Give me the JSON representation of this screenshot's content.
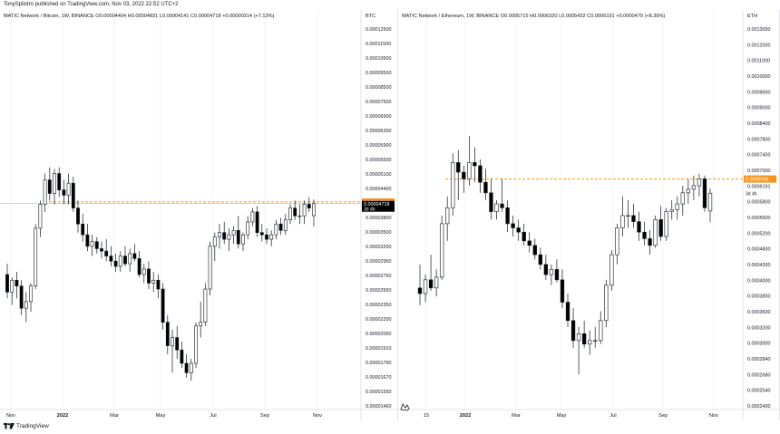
{
  "publisher_line": "TonySpilotro published on TradingView.com, Nov 03, 2022 22:52 UTC+2",
  "footer_brand": "TradingView",
  "colors": {
    "up": "#ffffff",
    "down": "#000000",
    "stroke": "#131722",
    "level": "#f7941d",
    "grid": "#f0f3fa"
  },
  "panels": [
    {
      "legend": "MATIC Network / Bitcoin, 1W, BINANCE  O0.00004404  H0.00004831  L0.00004141  C0.00004718  +0.00000314 (+7.13%)",
      "axis_unit": "BTC",
      "right_ticks": [
        "0.00012500",
        "0.00011500",
        "0.00010500",
        "0.00009500",
        "0.00008500",
        "0.00007500",
        "0.00006900",
        "0.00006300",
        "0.00005900",
        "0.00005500",
        "0.00005100",
        "0.00004400",
        "0.00004100",
        "0.00003800",
        "0.00003500",
        "0.00003200",
        "0.00002950",
        "0.00002750",
        "0.00002550",
        "0.00002350",
        "0.00002200",
        "0.00002050",
        "0.00001910",
        "0.00001790",
        "0.00001670",
        "0.00001550",
        "0.00001460"
      ],
      "level_label": "0.00004762",
      "price_label": "0.00004718",
      "countdown_label": "3d 4h",
      "time_ticks": [
        "Nov",
        "2022",
        "Mar",
        "May",
        "Jul",
        "Sep",
        "Nov"
      ]
    },
    {
      "legend": "MATIC Network / Ethereum, 1W, BINANCE  O0.0005715  H0.0006320  L0.0005432  C0.0006191  +0.0000479 (+8.39%)",
      "axis_unit": "ETH",
      "right_ticks": [
        "0.0013000",
        "0.0012000",
        "0.0011000",
        "0.0010000",
        "0.0009600",
        "0.0009000",
        "0.0008400",
        "0.0007800",
        "0.0007400",
        "0.0007000",
        "0.0006191",
        "0.0005800",
        "0.0005600",
        "0.0005200",
        "0.0004800",
        "0.0004300",
        "0.0004000",
        "0.0003800",
        "0.0003600",
        "0.0003200",
        "0.0003000",
        "0.0002840",
        "0.0002680",
        "0.0002540",
        "0.0002400"
      ],
      "level_label": "0.0006596",
      "price_label": "",
      "countdown_label": "3d 4h",
      "time_ticks": [
        "15",
        "2022",
        "Mar",
        "May",
        "Jul",
        "Sep",
        "Nov"
      ]
    }
  ],
  "chart_data": [
    {
      "type": "candlestick",
      "title": "MATIC Network / Bitcoin, 1W, BINANCE",
      "ylabel": "BTC",
      "scale": "log",
      "ylim": [
        1.46e-05,
        0.000135
      ],
      "x_labels": [
        "Nov",
        "2022",
        "Mar",
        "May",
        "Jul",
        "Sep",
        "Nov"
      ],
      "horizontal_level": 4.762e-05,
      "last_close": 4.718e-05,
      "ohlc": [
        [
          3.15e-05,
          3.35e-05,
          2.75e-05,
          2.85e-05
        ],
        [
          2.85e-05,
          3.1e-05,
          2.65e-05,
          3.05e-05
        ],
        [
          3.05e-05,
          3.2e-05,
          2.75e-05,
          2.95e-05
        ],
        [
          2.95e-05,
          3.05e-05,
          2.5e-05,
          2.6e-05
        ],
        [
          2.6e-05,
          2.85e-05,
          2.4e-05,
          2.7e-05
        ],
        [
          2.7e-05,
          3e-05,
          2.55e-05,
          2.95e-05
        ],
        [
          2.95e-05,
          4.2e-05,
          2.9e-05,
          4.1e-05
        ],
        [
          4.1e-05,
          4.8e-05,
          3.9e-05,
          4.7e-05
        ],
        [
          4.7e-05,
          5.6e-05,
          4.5e-05,
          5.4e-05
        ],
        [
          5.4e-05,
          5.8e-05,
          4.8e-05,
          5e-05
        ],
        [
          5e-05,
          5.75e-05,
          4.7e-05,
          5.6e-05
        ],
        [
          5.6e-05,
          5.8e-05,
          4.9e-05,
          5.1e-05
        ],
        [
          5.1e-05,
          5.4e-05,
          4.7e-05,
          4.95e-05
        ],
        [
          4.95e-05,
          5.6e-05,
          4.7e-05,
          5.3e-05
        ],
        [
          5.3e-05,
          5.5e-05,
          4.5e-05,
          4.6e-05
        ],
        [
          4.6e-05,
          4.8e-05,
          4e-05,
          4.2e-05
        ],
        [
          4.2e-05,
          4.45e-05,
          3.8e-05,
          3.95e-05
        ],
        [
          3.95e-05,
          4.2e-05,
          3.6e-05,
          3.7e-05
        ],
        [
          3.7e-05,
          3.95e-05,
          3.5e-05,
          3.8e-05
        ],
        [
          3.8e-05,
          3.9e-05,
          3.55e-05,
          3.65e-05
        ],
        [
          3.65e-05,
          3.8e-05,
          3.45e-05,
          3.6e-05
        ],
        [
          3.6e-05,
          3.85e-05,
          3.4e-05,
          3.5e-05
        ],
        [
          3.5e-05,
          3.7e-05,
          3.3e-05,
          3.4e-05
        ],
        [
          3.4e-05,
          3.55e-05,
          3.2e-05,
          3.3e-05
        ],
        [
          3.3e-05,
          3.6e-05,
          3.2e-05,
          3.5e-05
        ],
        [
          3.5e-05,
          3.7e-05,
          3.3e-05,
          3.35e-05
        ],
        [
          3.35e-05,
          3.65e-05,
          3.2e-05,
          3.55e-05
        ],
        [
          3.55e-05,
          3.75e-05,
          3.4e-05,
          3.45e-05
        ],
        [
          3.45e-05,
          3.6e-05,
          3.1e-05,
          3.15e-05
        ],
        [
          3.15e-05,
          3.35e-05,
          3e-05,
          3.25e-05
        ],
        [
          3.25e-05,
          3.4e-05,
          2.9e-05,
          3e-05
        ],
        [
          3e-05,
          3.2e-05,
          2.85e-05,
          3.05e-05
        ],
        [
          3.05e-05,
          3.15e-05,
          2.75e-05,
          2.9e-05
        ],
        [
          2.9e-05,
          3e-05,
          2.3e-05,
          2.4e-05
        ],
        [
          2.4e-05,
          2.5e-05,
          2e-05,
          2.1e-05
        ],
        [
          2.1e-05,
          2.3e-05,
          1.8e-05,
          2.2e-05
        ],
        [
          2.2e-05,
          2.35e-05,
          1.95e-05,
          2.05e-05
        ],
        [
          2.05e-05,
          2.15e-05,
          1.85e-05,
          1.9e-05
        ],
        [
          1.9e-05,
          2e-05,
          1.75e-05,
          1.8e-05
        ],
        [
          1.8e-05,
          1.95e-05,
          1.72e-05,
          1.9e-05
        ],
        [
          1.9e-05,
          2.4e-05,
          1.85e-05,
          2.35e-05
        ],
        [
          2.35e-05,
          2.7e-05,
          2.2e-05,
          2.4e-05
        ],
        [
          2.4e-05,
          3e-05,
          2.35e-05,
          2.9e-05
        ],
        [
          2.9e-05,
          3.8e-05,
          2.8e-05,
          3.7e-05
        ],
        [
          3.7e-05,
          4e-05,
          3.4e-05,
          3.9e-05
        ],
        [
          3.9e-05,
          4.2e-05,
          3.65e-05,
          4e-05
        ],
        [
          4e-05,
          4.25e-05,
          3.75e-05,
          3.85e-05
        ],
        [
          3.85e-05,
          4.1e-05,
          3.6e-05,
          3.95e-05
        ],
        [
          3.95e-05,
          4.15e-05,
          3.75e-05,
          4.05e-05
        ],
        [
          4.05e-05,
          4.4e-05,
          3.65e-05,
          3.75e-05
        ],
        [
          3.75e-05,
          4e-05,
          3.6e-05,
          3.95e-05
        ],
        [
          3.95e-05,
          4.4e-05,
          3.85e-05,
          4.25e-05
        ],
        [
          4.25e-05,
          4.6e-05,
          4.15e-05,
          4.5e-05
        ],
        [
          4.5e-05,
          4.65e-05,
          3.9e-05,
          4e-05
        ],
        [
          4e-05,
          4.2e-05,
          3.8e-05,
          3.95e-05
        ],
        [
          3.95e-05,
          4.1e-05,
          3.75e-05,
          3.85e-05
        ],
        [
          3.85e-05,
          4.05e-05,
          3.7e-05,
          3.95e-05
        ],
        [
          3.95e-05,
          4.3e-05,
          3.85e-05,
          4.2e-05
        ],
        [
          4.2e-05,
          4.35e-05,
          3.95e-05,
          4.05e-05
        ],
        [
          4.05e-05,
          4.45e-05,
          3.95e-05,
          4.3e-05
        ],
        [
          4.3e-05,
          4.7e-05,
          4.2e-05,
          4.6e-05
        ],
        [
          4.6e-05,
          4.8e-05,
          4.3e-05,
          4.4e-05
        ],
        [
          4.4e-05,
          4.7e-05,
          4.2e-05,
          4.4e-05
        ],
        [
          4.4e-05,
          4.8e-05,
          4.2e-05,
          4.7e-05
        ],
        [
          4.7e-05,
          4.9e-05,
          4.5e-05,
          4.6e-05
        ],
        [
          4.404e-05,
          4.831e-05,
          4.141e-05,
          4.718e-05
        ]
      ]
    },
    {
      "type": "candlestick",
      "title": "MATIC Network / Ethereum, 1W, BINANCE",
      "ylabel": "ETH",
      "scale": "log",
      "ylim": [
        0.000235,
        0.00135
      ],
      "x_labels": [
        "15",
        "2022",
        "Mar",
        "May",
        "Jul",
        "Sep",
        "Nov"
      ],
      "horizontal_level": 0.0006596,
      "last_close": 0.0006191,
      "ohlc": [
        [
          0.000405,
          0.00045,
          0.000375,
          0.000395
        ],
        [
          0.000395,
          0.00043,
          0.00038,
          0.00042
        ],
        [
          0.00042,
          0.00047,
          0.0004,
          0.000405
        ],
        [
          0.000405,
          0.00044,
          0.00039,
          0.000425
        ],
        [
          0.000425,
          0.00056,
          0.00042,
          0.00054
        ],
        [
          0.00054,
          0.00061,
          0.0005,
          0.00058
        ],
        [
          0.00058,
          0.00074,
          0.00056,
          0.00071
        ],
        [
          0.00071,
          0.00075,
          0.0006,
          0.00068
        ],
        [
          0.00068,
          0.0007,
          0.00062,
          0.00066
        ],
        [
          0.00066,
          0.0008,
          0.00064,
          0.00071
        ],
        [
          0.00071,
          0.00076,
          0.00065,
          0.0007
        ],
        [
          0.0007,
          0.00072,
          0.00062,
          0.00065
        ],
        [
          0.00065,
          0.00069,
          0.0006,
          0.00062
        ],
        [
          0.00062,
          0.00066,
          0.00055,
          0.00057
        ],
        [
          0.00057,
          0.0006,
          0.00055,
          0.00059
        ],
        [
          0.00059,
          0.00066,
          0.00057,
          0.00058
        ],
        [
          0.00058,
          0.0006,
          0.00052,
          0.00054
        ],
        [
          0.00054,
          0.00056,
          0.00051,
          0.00053
        ],
        [
          0.00053,
          0.00055,
          0.0005,
          0.00052
        ],
        [
          0.00052,
          0.00054,
          0.00049,
          0.0005
        ],
        [
          0.0005,
          0.00052,
          0.000475,
          0.00049
        ],
        [
          0.00049,
          0.000505,
          0.00046,
          0.00047
        ],
        [
          0.00047,
          0.000485,
          0.00044,
          0.00045
        ],
        [
          0.00045,
          0.00047,
          0.00042,
          0.00043
        ],
        [
          0.00043,
          0.00045,
          0.00041,
          0.00044
        ],
        [
          0.00044,
          0.00046,
          0.000415,
          0.00042
        ],
        [
          0.00042,
          0.00044,
          0.00037,
          0.00038
        ],
        [
          0.00038,
          0.000395,
          0.00034,
          0.00035
        ],
        [
          0.00035,
          0.00037,
          0.00031,
          0.00032
        ],
        [
          0.00032,
          0.00034,
          0.000275,
          0.00033
        ],
        [
          0.00033,
          0.00035,
          0.00031,
          0.000315
        ],
        [
          0.000315,
          0.000335,
          0.0003,
          0.00032
        ],
        [
          0.00032,
          0.00034,
          0.00031,
          0.00032
        ],
        [
          0.00032,
          0.000365,
          0.000315,
          0.00035
        ],
        [
          0.00035,
          0.00042,
          0.00034,
          0.00041
        ],
        [
          0.00041,
          0.00048,
          0.0004,
          0.00047
        ],
        [
          0.00047,
          0.00054,
          0.00045,
          0.00053
        ],
        [
          0.00053,
          0.00061,
          0.00051,
          0.00056
        ],
        [
          0.00056,
          0.0006,
          0.00053,
          0.00056
        ],
        [
          0.00056,
          0.00059,
          0.00053,
          0.000545
        ],
        [
          0.000545,
          0.00057,
          0.0005,
          0.00052
        ],
        [
          0.00052,
          0.000545,
          0.00049,
          0.000505
        ],
        [
          0.000505,
          0.000525,
          0.00047,
          0.00049
        ],
        [
          0.00049,
          0.00056,
          0.000485,
          0.00055
        ],
        [
          0.00055,
          0.000585,
          0.0005,
          0.00051
        ],
        [
          0.00051,
          0.00058,
          0.0005,
          0.00057
        ],
        [
          0.00057,
          0.0006,
          0.00055,
          0.000575
        ],
        [
          0.000575,
          0.00061,
          0.00055,
          0.00059
        ],
        [
          0.00059,
          0.00064,
          0.00056,
          0.00062
        ],
        [
          0.00062,
          0.00066,
          0.00059,
          0.00063
        ],
        [
          0.00063,
          0.00067,
          0.0006,
          0.00064
        ],
        [
          0.00064,
          0.000675,
          0.00061,
          0.00066
        ],
        [
          0.00066,
          0.00067,
          0.00057,
          0.00058
        ],
        [
          0.0005715,
          0.000632,
          0.0005432,
          0.0006191
        ]
      ]
    }
  ]
}
